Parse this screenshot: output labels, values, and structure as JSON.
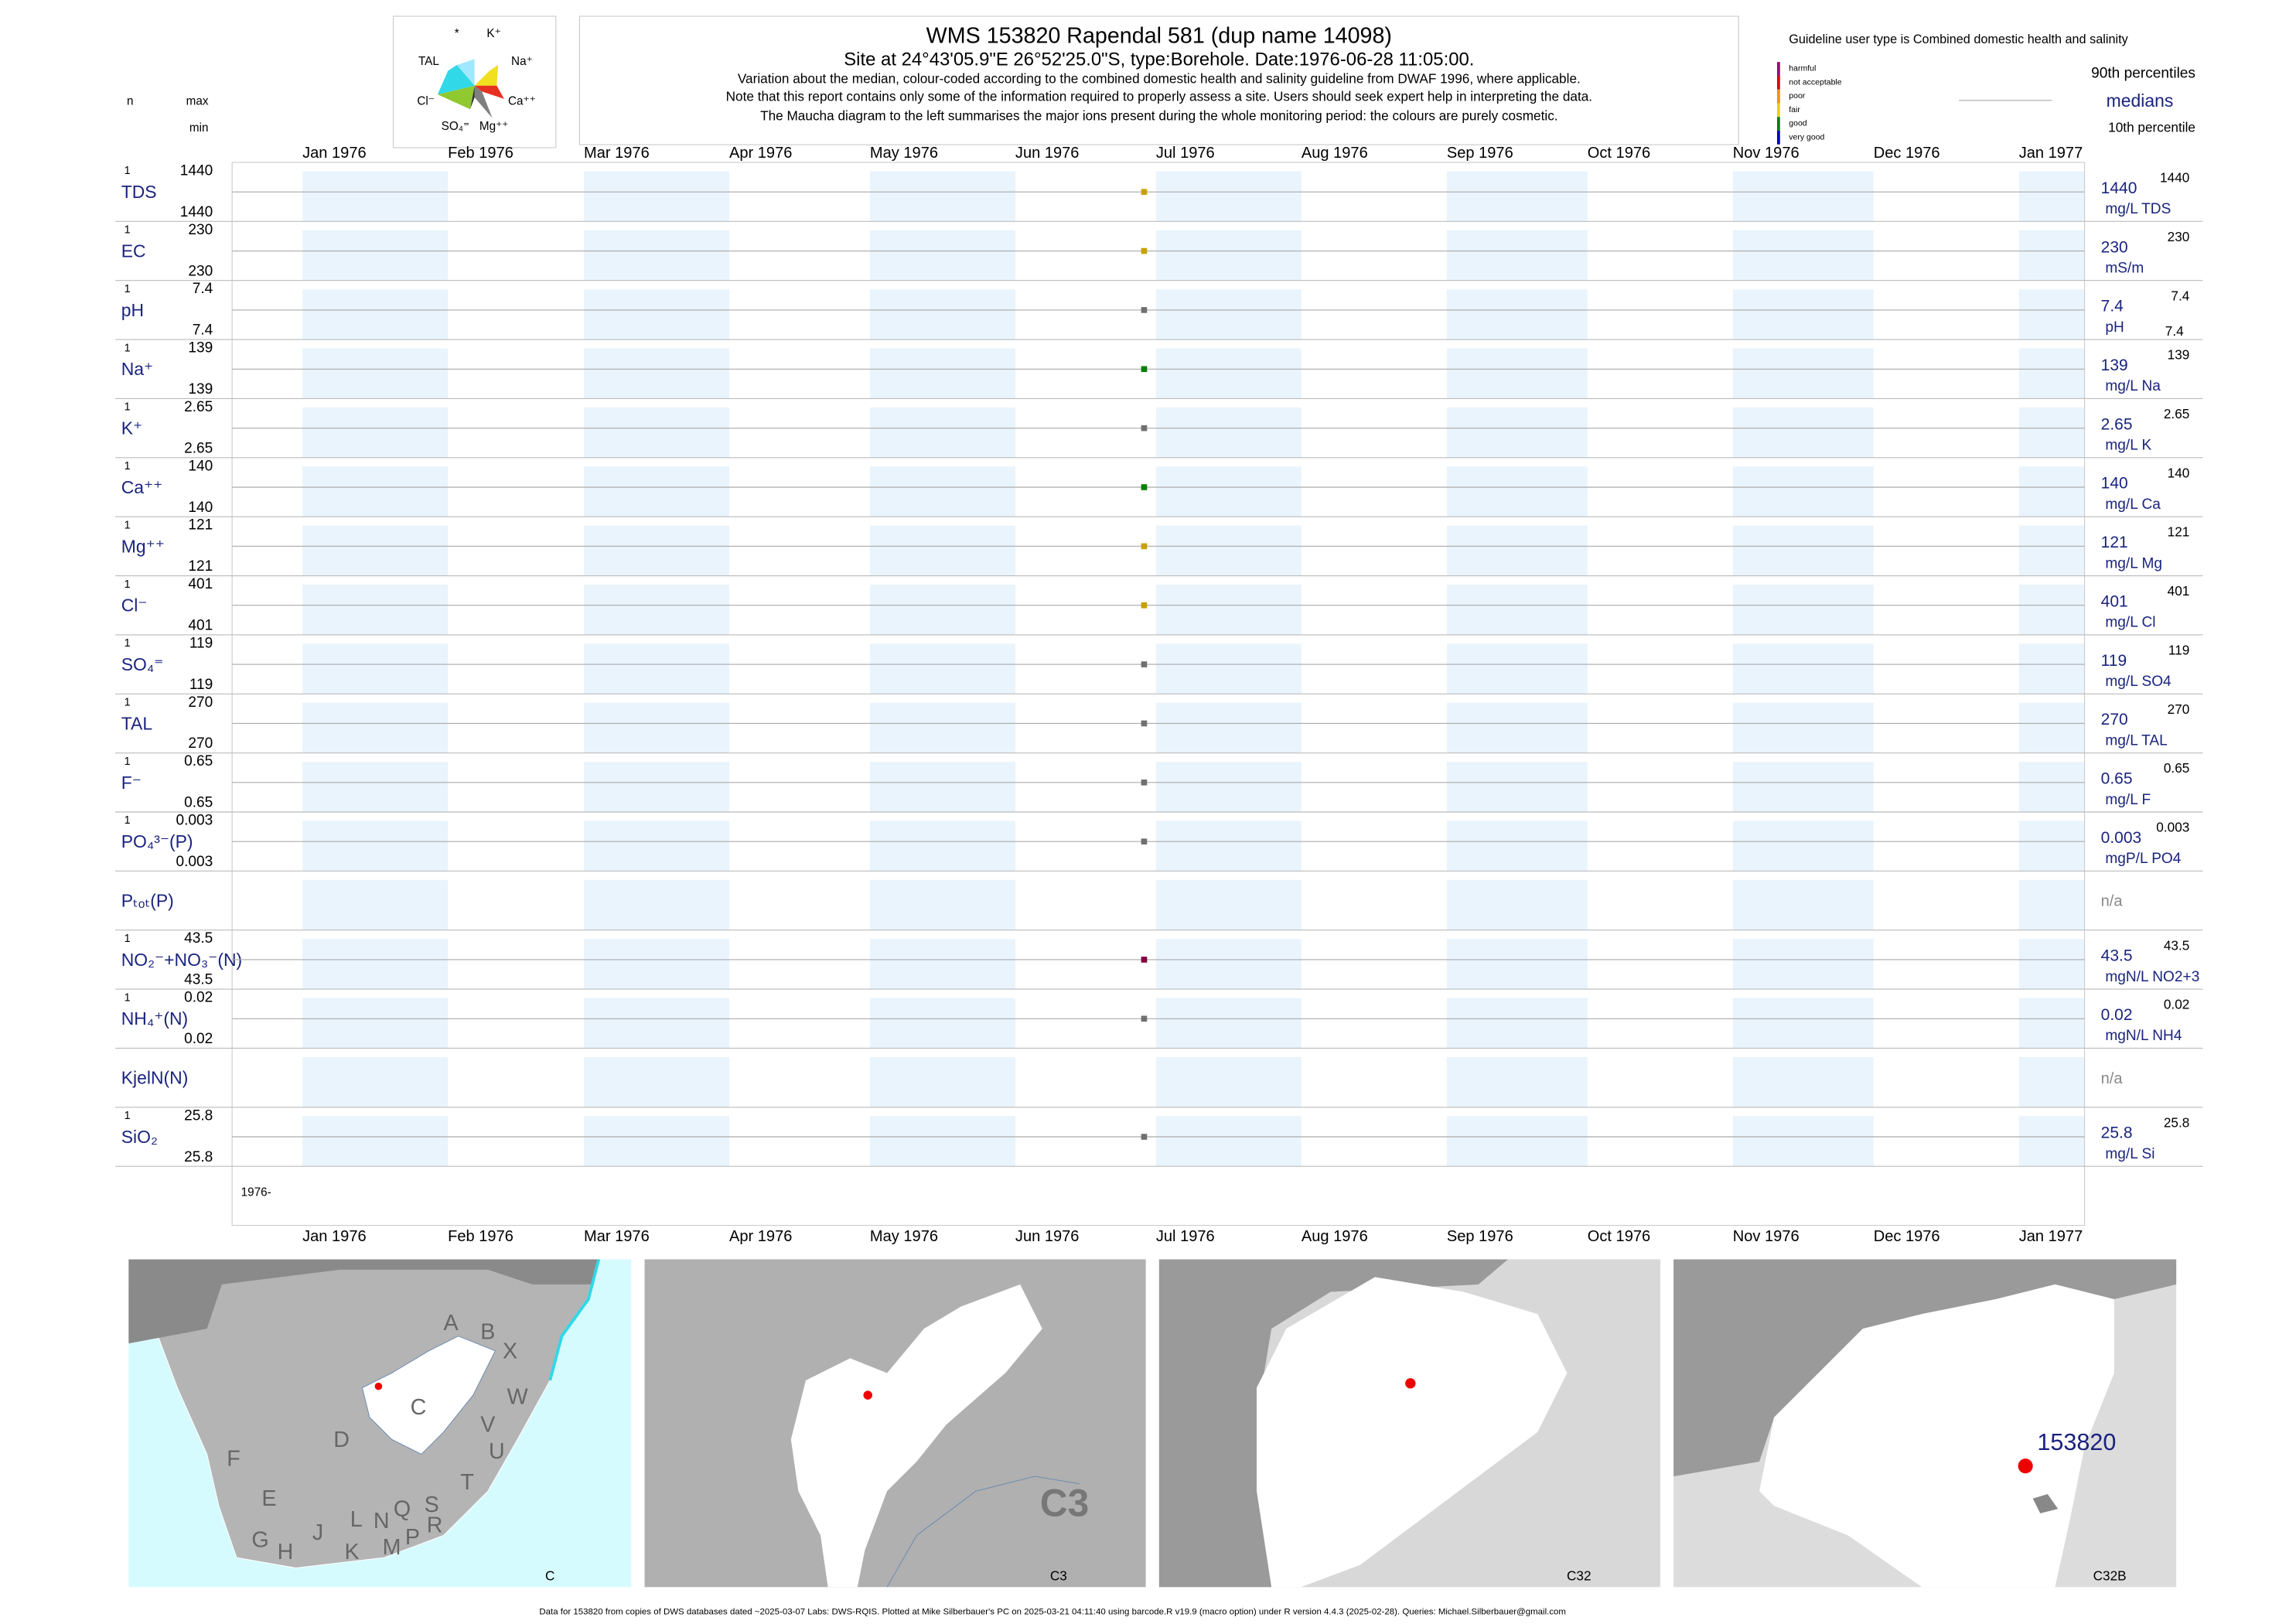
{
  "maucha": {
    "labels": [
      "*",
      "K⁺",
      "Na⁺",
      "Ca⁺⁺",
      "Mg⁺⁺",
      "SO₄⁼",
      "Cl⁻",
      "TAL"
    ]
  },
  "header": {
    "title": "WMS 153820  Rapendal 581 (dup name 14098)",
    "subtitle_prefix": "Site at 24°43'05.9\"E 26°52'25.0\"S, type:Borehole. Date:",
    "sample_date": "1976-06-28 11:05:00",
    "subtitle_suffix": ".",
    "notes": [
      "Variation about the median,  colour-coded according to the combined domestic health and salinity guideline from DWAF 1996, where applicable.",
      "Note that this report contains only some of the information required to properly assess a site. Users should seek expert help in interpreting the data.",
      "The Maucha diagram to the left summarises the major ions present during the whole monitoring period: the colours are purely cosmetic."
    ]
  },
  "left_header": {
    "n": "n",
    "max": "max",
    "min": "min"
  },
  "guideline": {
    "title": "Guideline user type is Combined domestic health and salinity",
    "classes": [
      {
        "name": "harmful",
        "color": "#a0007c"
      },
      {
        "name": "not acceptable",
        "color": "#e00000"
      },
      {
        "name": "poor",
        "color": "#ff8c00"
      },
      {
        "name": "fair",
        "color": "#e8d000"
      },
      {
        "name": "good",
        "color": "#008000"
      },
      {
        "name": "very good",
        "color": "#0000c0"
      }
    ],
    "percentile_90": "90th percentiles",
    "medians": "medians",
    "percentile_10": "10th percentile"
  },
  "chart_data": {
    "type": "strip",
    "xlim": [
      "1975-12-17",
      "1977-01-15"
    ],
    "xticks": [
      {
        "value": "1976-01-01",
        "label": "Jan 1976"
      },
      {
        "value": "1976-02-01",
        "label": "Feb 1976"
      },
      {
        "value": "1976-03-01",
        "label": "Mar 1976"
      },
      {
        "value": "1976-04-01",
        "label": "Apr 1976"
      },
      {
        "value": "1976-05-01",
        "label": "May 1976"
      },
      {
        "value": "1976-06-01",
        "label": "Jun 1976"
      },
      {
        "value": "1976-07-01",
        "label": "Jul 1976"
      },
      {
        "value": "1976-08-01",
        "label": "Aug 1976"
      },
      {
        "value": "1976-09-01",
        "label": "Sep 1976"
      },
      {
        "value": "1976-10-01",
        "label": "Oct 1976"
      },
      {
        "value": "1976-11-01",
        "label": "Nov 1976"
      },
      {
        "value": "1976-12-01",
        "label": "Dec 1976"
      },
      {
        "value": "1977-01-01",
        "label": "Jan 1977"
      }
    ],
    "year_label": "1976-",
    "rows": [
      {
        "label": "TDS",
        "n": 1,
        "max": 1440,
        "min": 1440,
        "median": 1440,
        "p90": 1440,
        "unit": "mg/L TDS",
        "color": "#c8a000"
      },
      {
        "label": "EC",
        "n": 1,
        "max": 230,
        "min": 230,
        "median": 230,
        "p90": 230,
        "unit": "mS/m",
        "color": "#c8a000"
      },
      {
        "label": "pH",
        "n": 1,
        "max": 7.4,
        "min": 7.4,
        "median": 7.4,
        "p90": 7.4,
        "p10": 7.4,
        "unit": "pH",
        "color": "#707070"
      },
      {
        "label": "Na⁺",
        "n": 1,
        "max": 139,
        "min": 139,
        "median": 139,
        "p90": 139,
        "unit": "mg/L Na",
        "color": "#008000"
      },
      {
        "label": "K⁺",
        "n": 1,
        "max": 2.65,
        "min": 2.65,
        "median": 2.65,
        "p90": 2.65,
        "unit": "mg/L K",
        "color": "#707070"
      },
      {
        "label": "Ca⁺⁺",
        "n": 1,
        "max": 140,
        "min": 140,
        "median": 140,
        "p90": 140,
        "unit": "mg/L Ca",
        "color": "#008000"
      },
      {
        "label": "Mg⁺⁺",
        "n": 1,
        "max": 121,
        "min": 121,
        "median": 121,
        "p90": 121,
        "unit": "mg/L Mg",
        "color": "#c8a000"
      },
      {
        "label": "Cl⁻",
        "n": 1,
        "max": 401,
        "min": 401,
        "median": 401,
        "p90": 401,
        "unit": "mg/L Cl",
        "color": "#c8a000"
      },
      {
        "label": "SO₄⁼",
        "n": 1,
        "max": 119,
        "min": 119,
        "median": 119,
        "p90": 119,
        "unit": "mg/L SO4",
        "color": "#707070"
      },
      {
        "label": "TAL",
        "n": 1,
        "max": 270,
        "min": 270,
        "median": 270,
        "p90": 270,
        "unit": "mg/L TAL",
        "color": "#707070"
      },
      {
        "label": "F⁻",
        "n": 1,
        "max": 0.65,
        "min": 0.65,
        "median": 0.65,
        "p90": 0.65,
        "unit": "mg/L F",
        "color": "#707070"
      },
      {
        "label": "PO₄³⁻(P)",
        "n": 1,
        "max": 0.003,
        "min": 0.003,
        "median": 0.003,
        "p90": 0.003,
        "unit": "mgP/L PO4",
        "color": "#707070"
      },
      {
        "label": "Pₜₒₜ(P)",
        "note": "n/a"
      },
      {
        "label": "NO₂⁻+NO₃⁻(N)",
        "n": 1,
        "max": 43.5,
        "min": 43.5,
        "median": 43.5,
        "p90": 43.5,
        "unit": "mgN/L NO2+3",
        "color": "#800040"
      },
      {
        "label": "NH₄⁺(N)",
        "n": 1,
        "max": 0.02,
        "min": 0.02,
        "median": 0.02,
        "p90": 0.02,
        "unit": "mgN/L NH4",
        "color": "#707070"
      },
      {
        "label": "KjelN(N)",
        "note": "n/a"
      },
      {
        "label": "SiO₂",
        "n": 1,
        "max": 25.8,
        "min": 25.8,
        "median": 25.8,
        "p90": 25.8,
        "unit": "mg/L Si",
        "color": "#707070"
      }
    ]
  },
  "maps": [
    {
      "label": "C",
      "regions": [
        "A",
        "B",
        "X",
        "W",
        "C",
        "D",
        "V",
        "U",
        "F",
        "E",
        "T",
        "S",
        "R",
        "Q",
        "P",
        "M",
        "N",
        "L",
        "K",
        "J",
        "H",
        "G"
      ]
    },
    {
      "label": "C3"
    },
    {
      "label": "C32"
    },
    {
      "label": "C32B",
      "site": "153820"
    }
  ],
  "footer": "Data for 153820 from copies of DWS databases dated ~2025-03-07 Labs: DWS-RQIS. Plotted at Mike Silberbauer's PC on 2025-03-21 04:11:40 using barcode.R v19.9 (macro option) under R version 4.4.3 (2025-02-28). Queries: Michael.Silberbauer@gmail.com"
}
